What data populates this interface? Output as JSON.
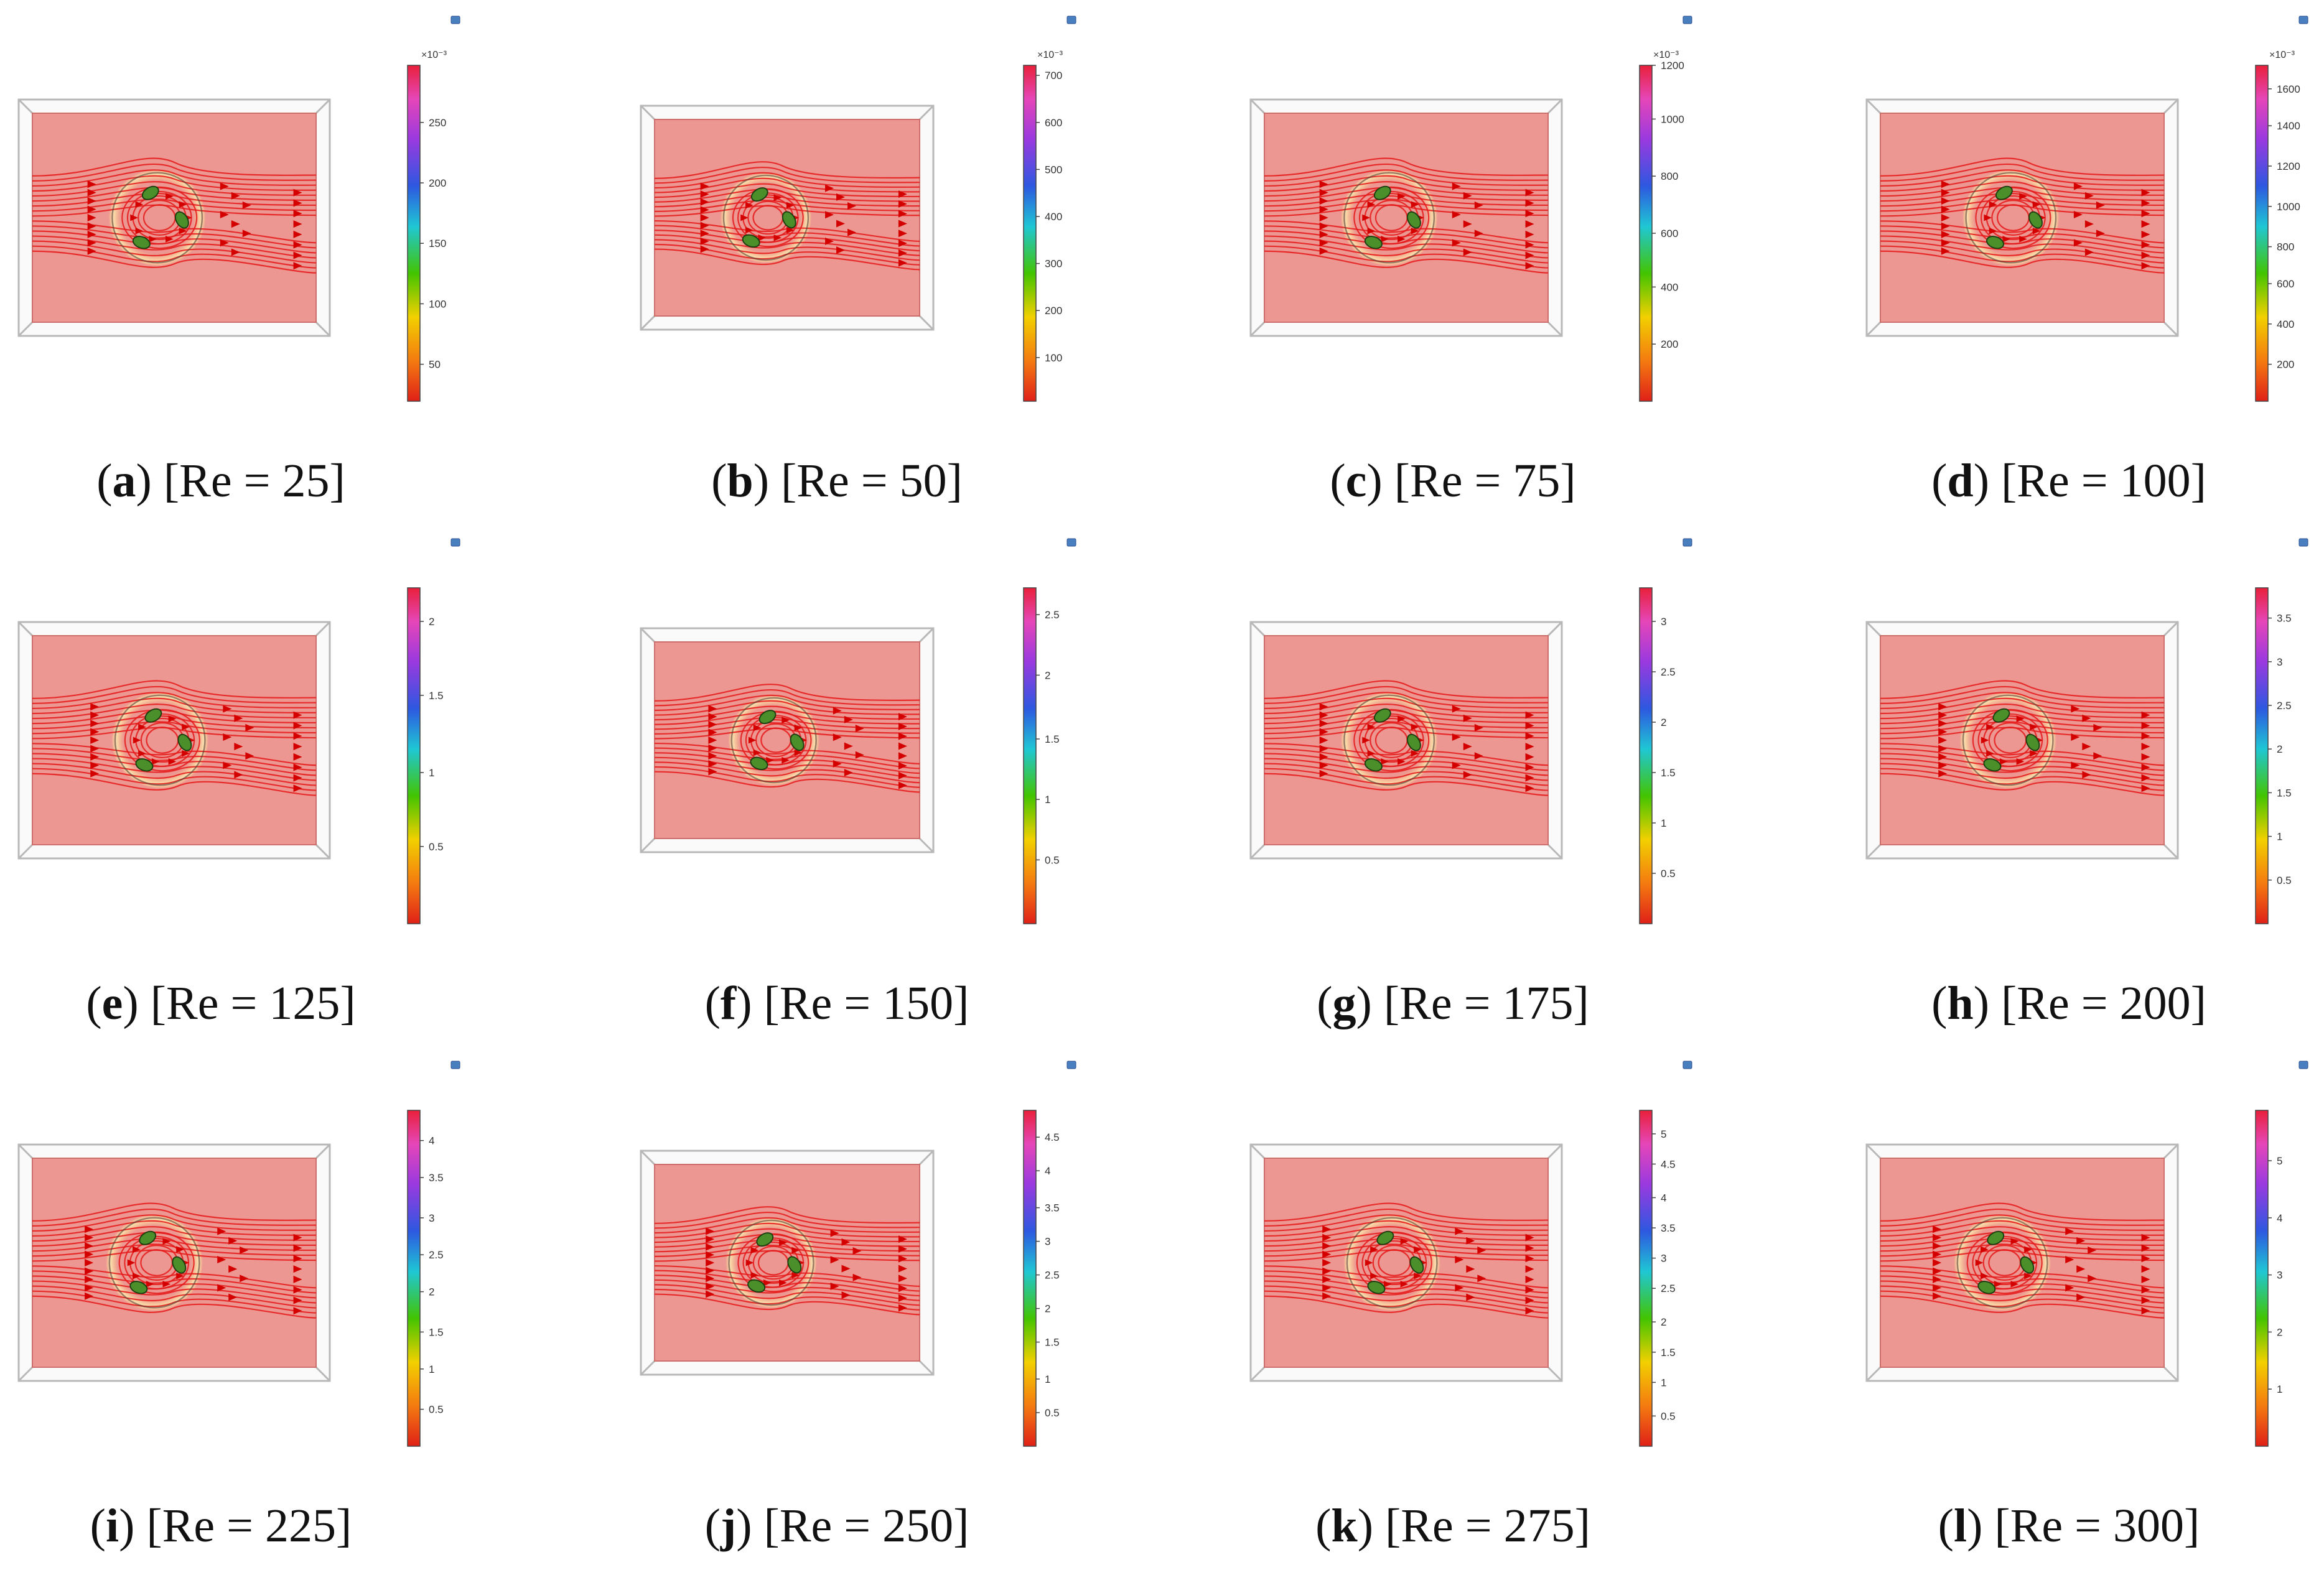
{
  "figure": {
    "panels": [
      {
        "letter": "a",
        "caption": "[Re = 25]",
        "colorbar": {
          "exponent": "×10⁻³",
          "ticks": [
            "250",
            "200",
            "150",
            "100",
            "50"
          ]
        },
        "ticks_frac": [
          0.83,
          0.65,
          0.47,
          0.29,
          0.11
        ],
        "circle_dx": -0.06
      },
      {
        "letter": "b",
        "caption": "[Re = 50]",
        "colorbar": {
          "exponent": "×10⁻³",
          "ticks": [
            "700",
            "600",
            "500",
            "400",
            "300",
            "200",
            "100"
          ]
        },
        "ticks_frac": [
          0.97,
          0.83,
          0.69,
          0.55,
          0.41,
          0.27,
          0.13
        ],
        "circle_dx": -0.08
      },
      {
        "letter": "c",
        "caption": "[Re = 75]",
        "colorbar": {
          "exponent": "×10⁻³",
          "ticks": [
            "1200",
            "1000",
            "800",
            "600",
            "400",
            "200"
          ]
        },
        "ticks_frac": [
          1.0,
          0.84,
          0.67,
          0.5,
          0.34,
          0.17
        ],
        "circle_dx": -0.06
      },
      {
        "letter": "d",
        "caption": "[Re = 100]",
        "colorbar": {
          "exponent": "×10⁻³",
          "ticks": [
            "1600",
            "1400",
            "1200",
            "1000",
            "800",
            "600",
            "400",
            "200"
          ]
        },
        "ticks_frac": [
          0.93,
          0.82,
          0.7,
          0.58,
          0.46,
          0.35,
          0.23,
          0.11
        ],
        "circle_dx": -0.04
      },
      {
        "letter": "e",
        "caption": "[Re = 125]",
        "colorbar": {
          "exponent": "",
          "ticks": [
            "2",
            "1.5",
            "1",
            "0.5"
          ]
        },
        "ticks_frac": [
          0.9,
          0.68,
          0.45,
          0.23
        ],
        "circle_dx": -0.05
      },
      {
        "letter": "f",
        "caption": "[Re = 150]",
        "colorbar": {
          "exponent": "",
          "ticks": [
            "2.5",
            "2",
            "1.5",
            "1",
            "0.5"
          ]
        },
        "ticks_frac": [
          0.92,
          0.74,
          0.55,
          0.37,
          0.19
        ],
        "circle_dx": -0.05
      },
      {
        "letter": "g",
        "caption": "[Re = 175]",
        "colorbar": {
          "exponent": "",
          "ticks": [
            "3",
            "2.5",
            "2",
            "1.5",
            "1",
            "0.5"
          ]
        },
        "ticks_frac": [
          0.9,
          0.75,
          0.6,
          0.45,
          0.3,
          0.15
        ],
        "circle_dx": -0.06
      },
      {
        "letter": "h",
        "caption": "[Re = 200]",
        "colorbar": {
          "exponent": "",
          "ticks": [
            "3.5",
            "3",
            "2.5",
            "2",
            "1.5",
            "1",
            "0.5"
          ]
        },
        "ticks_frac": [
          0.91,
          0.78,
          0.65,
          0.52,
          0.39,
          0.26,
          0.13
        ],
        "circle_dx": -0.05
      },
      {
        "letter": "i",
        "caption": "[Re = 225]",
        "colorbar": {
          "exponent": "",
          "ticks": [
            "4",
            "3.5",
            "3",
            "2.5",
            "2",
            "1.5",
            "1",
            "0.5"
          ]
        },
        "ticks_frac": [
          0.91,
          0.8,
          0.68,
          0.57,
          0.46,
          0.34,
          0.23,
          0.11
        ],
        "circle_dx": -0.07
      },
      {
        "letter": "j",
        "caption": "[Re = 250]",
        "colorbar": {
          "exponent": "",
          "ticks": [
            "4.5",
            "4",
            "3.5",
            "3",
            "2.5",
            "2",
            "1.5",
            "1",
            "0.5"
          ]
        },
        "ticks_frac": [
          0.92,
          0.82,
          0.71,
          0.61,
          0.51,
          0.41,
          0.31,
          0.2,
          0.1
        ],
        "circle_dx": -0.06
      },
      {
        "letter": "k",
        "caption": "[Re = 275]",
        "colorbar": {
          "exponent": "",
          "ticks": [
            "5",
            "4.5",
            "4",
            "3.5",
            "3",
            "2.5",
            "2",
            "1.5",
            "1",
            "0.5"
          ]
        },
        "ticks_frac": [
          0.93,
          0.84,
          0.74,
          0.65,
          0.56,
          0.47,
          0.37,
          0.28,
          0.19,
          0.09
        ],
        "circle_dx": -0.05
      },
      {
        "letter": "l",
        "caption": "[Re = 300]",
        "colorbar": {
          "exponent": "",
          "ticks": [
            "5",
            "4",
            "3",
            "2",
            "1"
          ]
        },
        "ticks_frac": [
          0.85,
          0.68,
          0.51,
          0.34,
          0.17
        ],
        "circle_dx": -0.07
      }
    ],
    "colors": {
      "domain_fill": "#ec9792",
      "domain_edge": "#cc6f6a",
      "stream": "#e51717",
      "arrow": "#d40000",
      "frame": "#b8b8b8",
      "particle": "#4a8f2a"
    }
  }
}
